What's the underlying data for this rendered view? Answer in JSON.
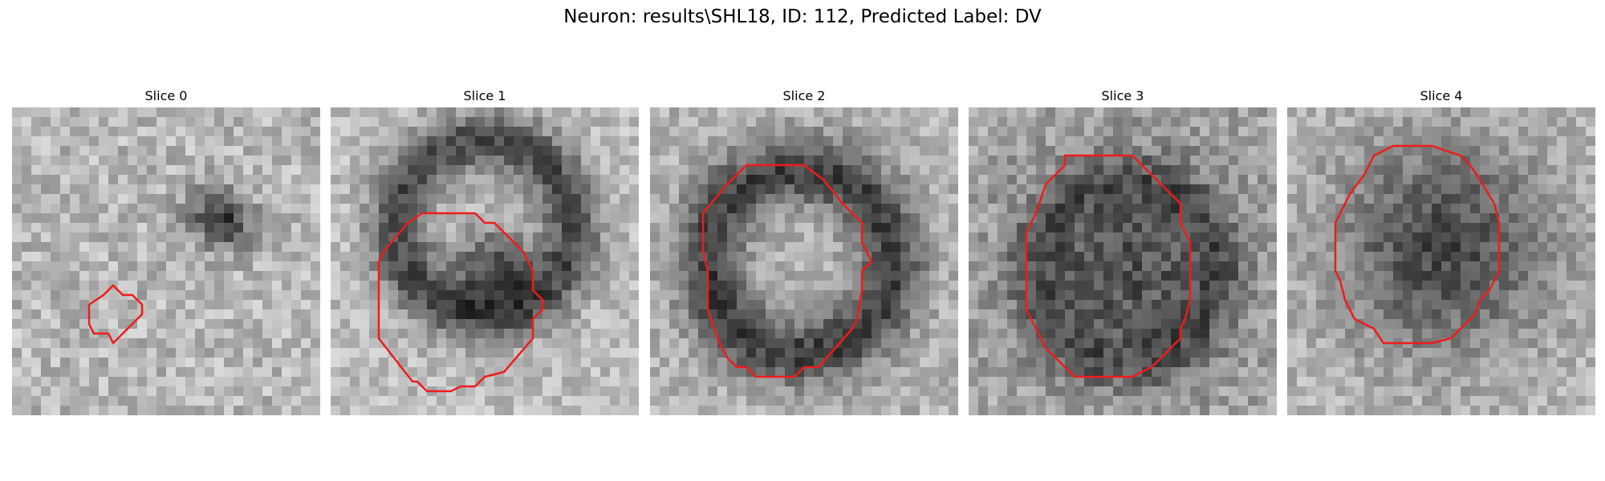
{
  "figure": {
    "title": "Neuron: results\\SHL18, ID: 112, Predicted Label: DV",
    "contour_color": "#ee1c1c"
  },
  "slices": [
    {
      "title": "Slice 0"
    },
    {
      "title": "Slice 1"
    },
    {
      "title": "Slice 2"
    },
    {
      "title": "Slice 3"
    },
    {
      "title": "Slice 4"
    }
  ]
}
